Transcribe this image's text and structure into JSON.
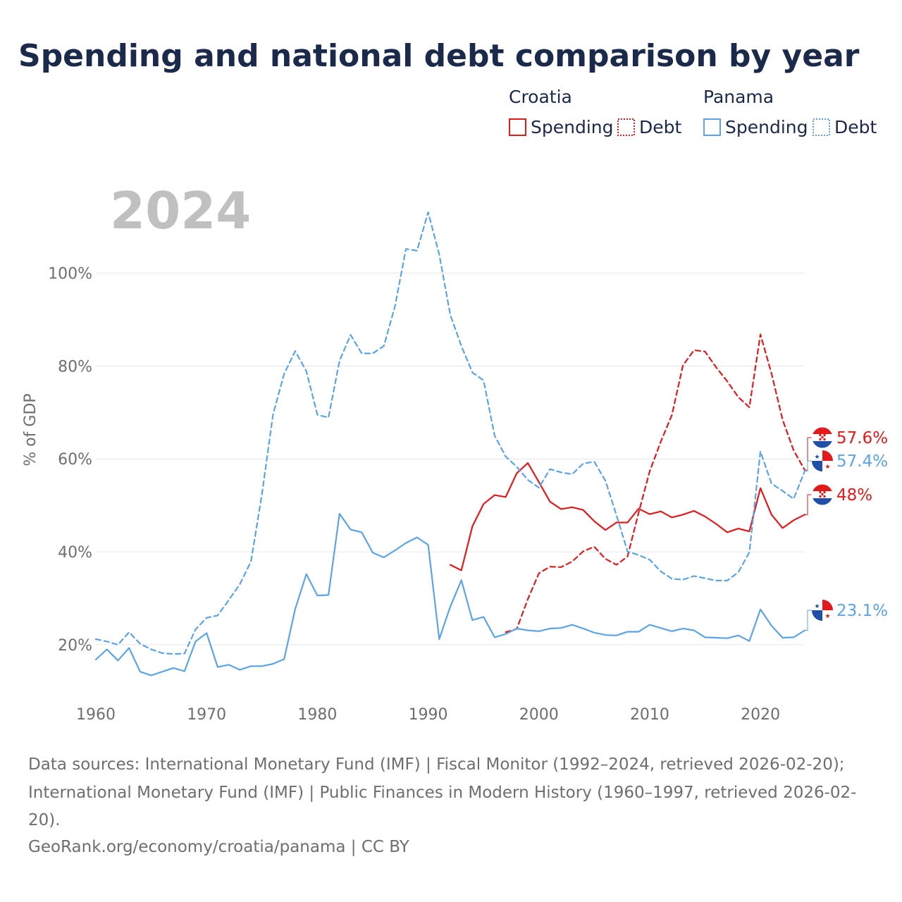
{
  "title": "Spending and national debt comparison by year",
  "year_watermark": "2024",
  "colors": {
    "croatia": "#e31a1c",
    "panama": "#5ca4e6",
    "text": "#1b2a4a",
    "muted": "#6e6e6e"
  },
  "legend": {
    "groups": [
      {
        "name": "Croatia",
        "items": [
          {
            "label": "Spending",
            "style": "solid"
          },
          {
            "label": "Debt",
            "style": "dashed"
          }
        ]
      },
      {
        "name": "Panama",
        "items": [
          {
            "label": "Spending",
            "style": "solid"
          },
          {
            "label": "Debt",
            "style": "dashed"
          }
        ]
      }
    ]
  },
  "chart_data": {
    "type": "line",
    "ylabel": "% of GDP",
    "xlabel": "",
    "xlim": [
      1960,
      2024
    ],
    "ylim": [
      7.4,
      116
    ],
    "yticks": [
      20,
      40,
      60,
      80,
      100
    ],
    "ytick_labels": [
      "20%",
      "40%",
      "60%",
      "80%",
      "100%"
    ],
    "xticks": [
      1960,
      1970,
      1980,
      1990,
      2000,
      2010,
      2020
    ],
    "xtick_labels": [
      "1960",
      "1970",
      "1980",
      "1990",
      "2000",
      "2010",
      "2020"
    ],
    "series": [
      {
        "name": "Croatia Spending",
        "country": "croatia",
        "dash": false,
        "x": [
          1992,
          1993,
          1994,
          1995,
          1996,
          1997,
          1998,
          1999,
          2000,
          2001,
          2002,
          2003,
          2004,
          2005,
          2006,
          2007,
          2008,
          2009,
          2010,
          2011,
          2012,
          2013,
          2014,
          2015,
          2016,
          2017,
          2018,
          2019,
          2020,
          2021,
          2022,
          2023,
          2024
        ],
        "values": [
          37.2,
          36.0,
          45.5,
          50.3,
          52.2,
          51.8,
          56.9,
          59.1,
          55.0,
          50.8,
          49.2,
          49.6,
          49.0,
          46.6,
          44.7,
          46.3,
          46.3,
          49.3,
          48.1,
          48.7,
          47.4,
          48.0,
          48.8,
          47.6,
          46.0,
          44.2,
          45.0,
          44.4,
          53.7,
          48.0,
          45.1,
          46.8,
          48.0
        ]
      },
      {
        "name": "Croatia Debt",
        "country": "croatia",
        "dash": true,
        "x": [
          1997,
          1998,
          1999,
          2000,
          2001,
          2002,
          2003,
          2004,
          2005,
          2006,
          2007,
          2008,
          2009,
          2010,
          2011,
          2012,
          2013,
          2014,
          2015,
          2016,
          2017,
          2018,
          2019,
          2020,
          2021,
          2022,
          2023,
          2024
        ],
        "values": [
          22.7,
          23.4,
          29.8,
          35.4,
          36.8,
          36.7,
          37.9,
          40.1,
          41.1,
          38.5,
          37.2,
          39.0,
          48.4,
          57.3,
          63.7,
          69.4,
          80.1,
          83.4,
          83.1,
          79.7,
          76.7,
          73.3,
          71.1,
          86.8,
          78.4,
          68.4,
          61.8,
          57.6
        ]
      },
      {
        "name": "Panama Spending",
        "country": "panama",
        "dash": false,
        "x": [
          1960,
          1961,
          1962,
          1963,
          1964,
          1965,
          1966,
          1967,
          1968,
          1969,
          1970,
          1971,
          1972,
          1973,
          1974,
          1975,
          1976,
          1977,
          1978,
          1979,
          1980,
          1981,
          1982,
          1983,
          1984,
          1985,
          1986,
          1987,
          1988,
          1989,
          1990,
          1991,
          1992,
          1993,
          1994,
          1995,
          1996,
          1997,
          1998,
          1999,
          2000,
          2001,
          2002,
          2003,
          2004,
          2005,
          2006,
          2007,
          2008,
          2009,
          2010,
          2011,
          2012,
          2013,
          2014,
          2015,
          2016,
          2017,
          2018,
          2019,
          2020,
          2021,
          2022,
          2023,
          2024
        ],
        "values": [
          16.8,
          19.0,
          16.6,
          19.3,
          14.2,
          13.4,
          14.2,
          15.0,
          14.3,
          20.7,
          22.5,
          15.2,
          15.7,
          14.6,
          15.4,
          15.4,
          15.9,
          16.9,
          27.7,
          35.2,
          30.6,
          30.7,
          48.2,
          44.8,
          44.2,
          39.8,
          38.8,
          40.3,
          41.9,
          43.1,
          41.5,
          21.2,
          28.2,
          33.9,
          25.3,
          26.0,
          21.6,
          22.3,
          23.5,
          23.1,
          22.9,
          23.5,
          23.6,
          24.3,
          23.5,
          22.6,
          22.1,
          22.0,
          22.8,
          22.8,
          24.3,
          23.6,
          22.9,
          23.5,
          23.1,
          21.6,
          21.5,
          21.4,
          22.0,
          20.8,
          27.6,
          24.1,
          21.5,
          21.6,
          23.1
        ]
      },
      {
        "name": "Panama Debt",
        "country": "panama",
        "dash": true,
        "x": [
          1960,
          1961,
          1962,
          1963,
          1964,
          1965,
          1966,
          1967,
          1968,
          1969,
          1970,
          1971,
          1972,
          1973,
          1974,
          1975,
          1976,
          1977,
          1978,
          1979,
          1980,
          1981,
          1982,
          1983,
          1984,
          1985,
          1986,
          1987,
          1988,
          1989,
          1990,
          1991,
          1992,
          1993,
          1994,
          1995,
          1996,
          1997,
          1998,
          1999,
          2000,
          2001,
          2002,
          2003,
          2004,
          2005,
          2006,
          2007,
          2008,
          2009,
          2010,
          2011,
          2012,
          2013,
          2014,
          2015,
          2016,
          2017,
          2018,
          2019,
          2020,
          2021,
          2022,
          2023,
          2024
        ],
        "values": [
          21.2,
          20.7,
          20.0,
          22.7,
          20.2,
          19.0,
          18.2,
          18.0,
          18.1,
          23.3,
          25.8,
          26.3,
          29.6,
          33.0,
          37.9,
          52.5,
          69.6,
          78.3,
          83.2,
          78.9,
          69.5,
          68.9,
          81.1,
          86.7,
          82.7,
          82.7,
          84.3,
          92.8,
          105.2,
          104.8,
          113.1,
          104.0,
          91.0,
          84.3,
          78.6,
          76.9,
          65.0,
          60.5,
          58.3,
          55.5,
          53.8,
          57.8,
          57.1,
          56.7,
          59.0,
          59.4,
          55.3,
          47.9,
          40.1,
          39.3,
          38.3,
          35.8,
          34.2,
          34.0,
          34.8,
          34.3,
          33.8,
          33.8,
          35.6,
          39.9,
          61.6,
          54.7,
          53.1,
          51.4,
          57.4
        ]
      }
    ],
    "end_labels": [
      {
        "text": "57.6%",
        "country": "croatia",
        "value": 57.6,
        "flag": "hr"
      },
      {
        "text": "57.4%",
        "country": "panama",
        "value": 57.4,
        "flag": "pa"
      },
      {
        "text": "48%",
        "country": "croatia",
        "value": 48.0,
        "flag": "hr"
      },
      {
        "text": "23.1%",
        "country": "panama",
        "value": 23.1,
        "flag": "pa"
      }
    ]
  },
  "footer": {
    "line1": "Data sources: International Monetary Fund (IMF) | Fiscal Monitor (1992–2024, retrieved 2026-02-20);",
    "line2": "International Monetary Fund (IMF) | Public Finances in Modern History (1960–1997, retrieved 2026-02-",
    "line3": "20).",
    "line4": "GeoRank.org/economy/croatia/panama | CC BY"
  }
}
